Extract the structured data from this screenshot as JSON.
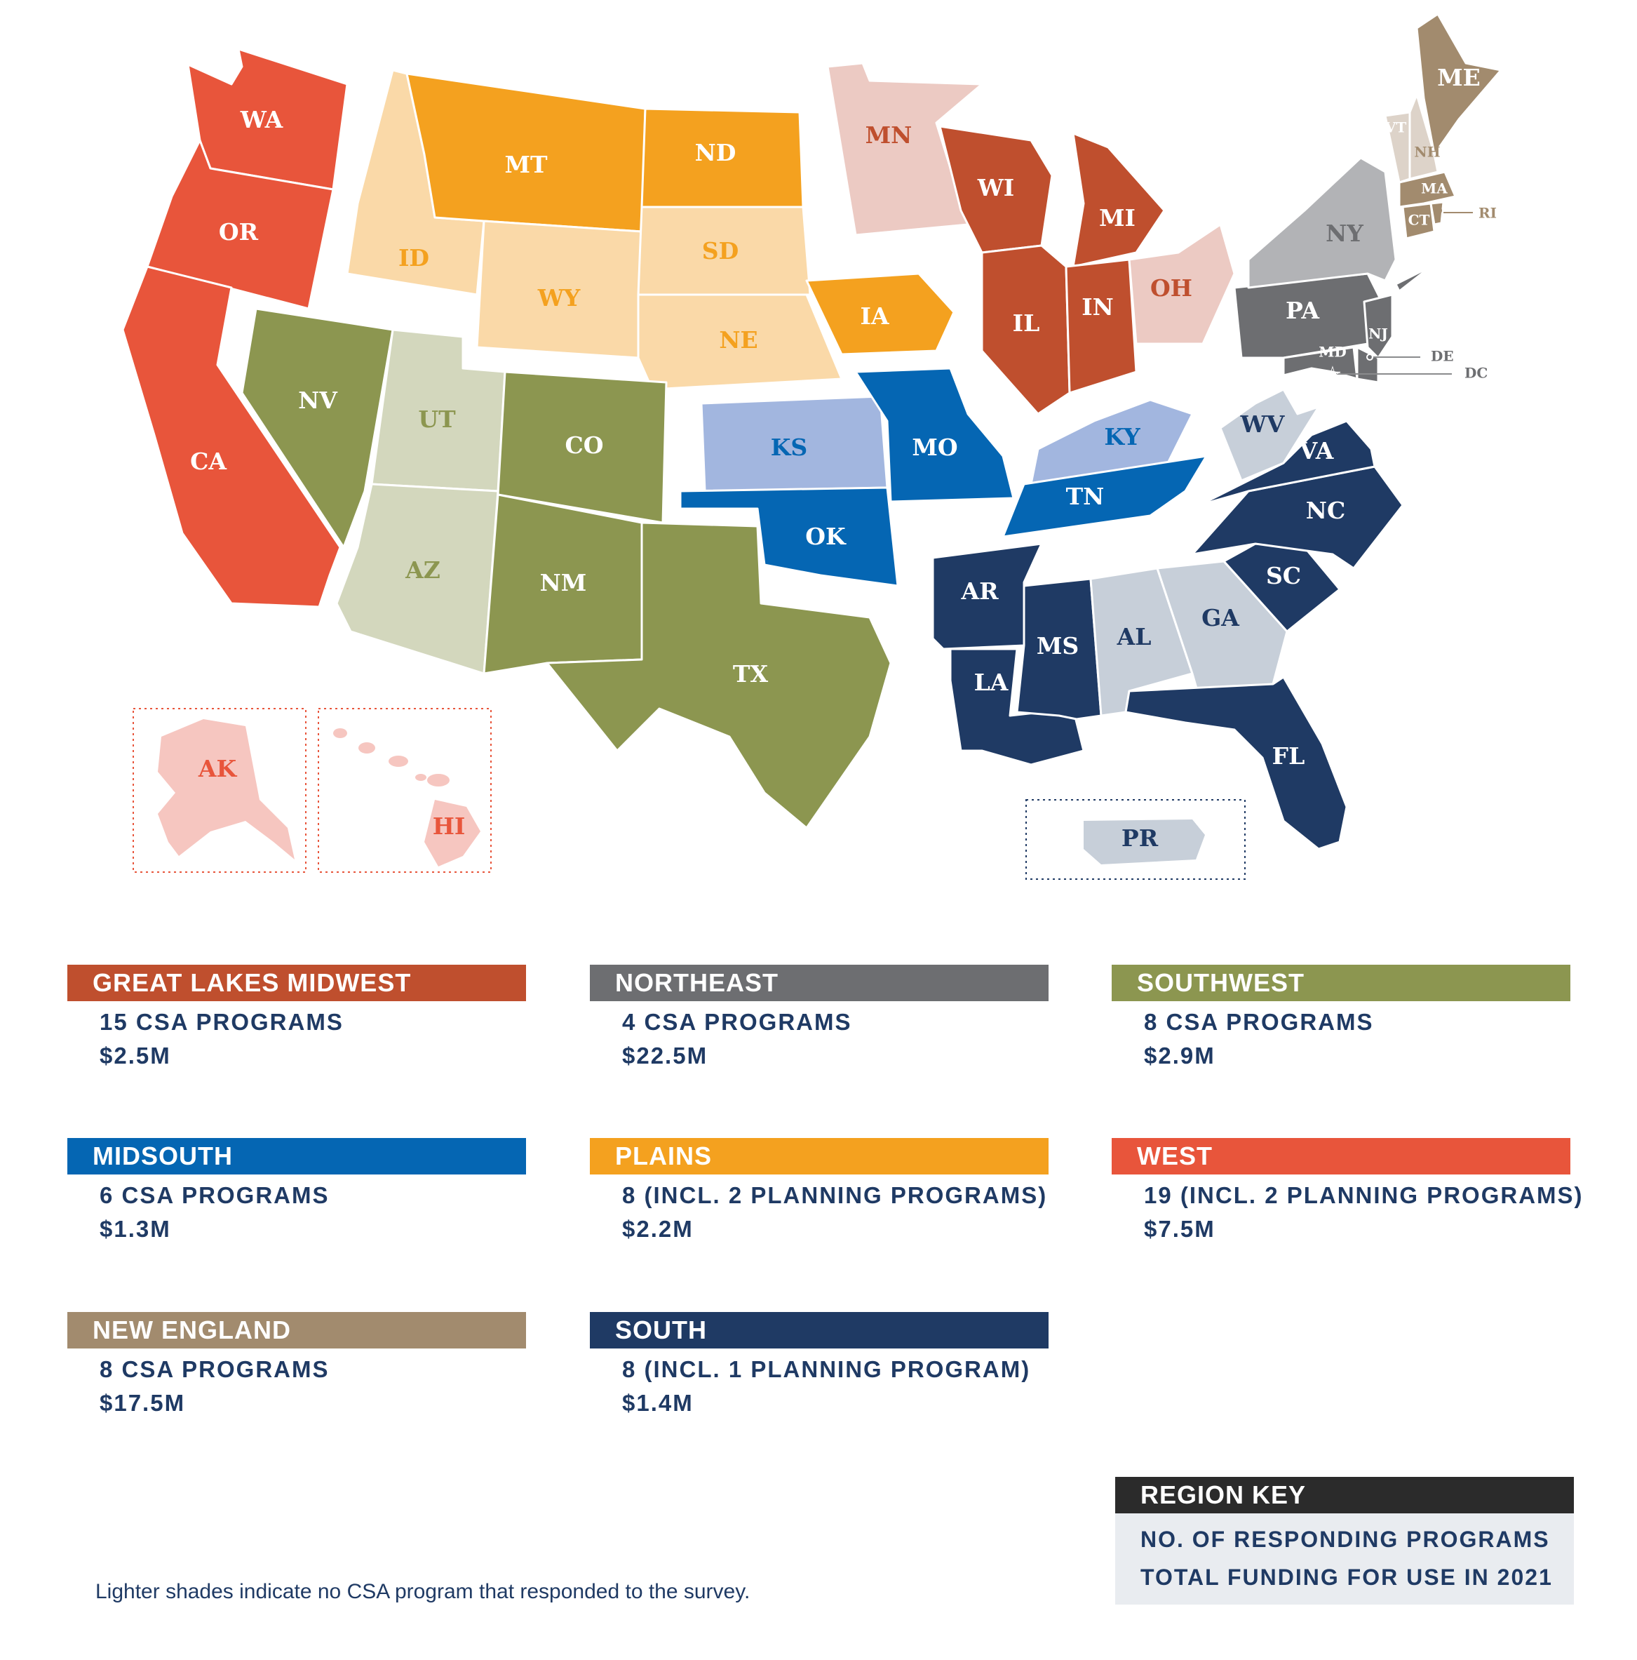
{
  "colors": {
    "great_lakes_midwest": "#bf4f2e",
    "great_lakes_midwest_light": "#eccac3",
    "northeast": "#6d6e71",
    "northeast_light": "#b2b3b6",
    "southwest": "#8c9650",
    "southwest_light": "#d3d7bd",
    "midsouth": "#0566b3",
    "midsouth_light": "#a2b6df",
    "plains": "#f4a11f",
    "plains_light": "#fad9a8",
    "west": "#e8553b",
    "west_light": "#f6c6c0",
    "new_england": "#a28b6e",
    "new_england_light": "#ddd3c9",
    "south": "#1f3a64",
    "south_light": "#c7cfd9",
    "label_dark": "#1f3a64",
    "white": "#ffffff"
  },
  "map": {
    "states": [
      {
        "id": "WA",
        "label": "WA"
      },
      {
        "id": "OR",
        "label": "OR"
      },
      {
        "id": "CA",
        "label": "CA"
      },
      {
        "id": "ID",
        "label": "ID"
      },
      {
        "id": "MT",
        "label": "MT"
      },
      {
        "id": "WY",
        "label": "WY"
      },
      {
        "id": "ND",
        "label": "ND"
      },
      {
        "id": "SD",
        "label": "SD"
      },
      {
        "id": "NE",
        "label": "NE"
      },
      {
        "id": "MN",
        "label": "MN"
      },
      {
        "id": "IA",
        "label": "IA"
      },
      {
        "id": "WI",
        "label": "WI"
      },
      {
        "id": "MI",
        "label": "MI"
      },
      {
        "id": "IL",
        "label": "IL"
      },
      {
        "id": "IN",
        "label": "IN"
      },
      {
        "id": "OH",
        "label": "OH"
      },
      {
        "id": "NV",
        "label": "NV"
      },
      {
        "id": "UT",
        "label": "UT"
      },
      {
        "id": "CO",
        "label": "CO"
      },
      {
        "id": "AZ",
        "label": "AZ"
      },
      {
        "id": "NM",
        "label": "NM"
      },
      {
        "id": "TX",
        "label": "TX"
      },
      {
        "id": "KS",
        "label": "KS"
      },
      {
        "id": "OK",
        "label": "OK"
      },
      {
        "id": "MO",
        "label": "MO"
      },
      {
        "id": "KY",
        "label": "KY"
      },
      {
        "id": "TN",
        "label": "TN"
      },
      {
        "id": "AR",
        "label": "AR"
      },
      {
        "id": "LA",
        "label": "LA"
      },
      {
        "id": "MS",
        "label": "MS"
      },
      {
        "id": "AL",
        "label": "AL"
      },
      {
        "id": "GA",
        "label": "GA"
      },
      {
        "id": "FL",
        "label": "FL"
      },
      {
        "id": "SC",
        "label": "SC"
      },
      {
        "id": "NC",
        "label": "NC"
      },
      {
        "id": "VA",
        "label": "VA"
      },
      {
        "id": "WV",
        "label": "WV"
      },
      {
        "id": "PA",
        "label": "PA"
      },
      {
        "id": "NY",
        "label": "NY"
      },
      {
        "id": "NJ",
        "label": "NJ"
      },
      {
        "id": "MD",
        "label": "MD"
      },
      {
        "id": "DE",
        "label": "DE"
      },
      {
        "id": "DC",
        "label": "DC"
      },
      {
        "id": "ME",
        "label": "ME"
      },
      {
        "id": "VT",
        "label": "VT"
      },
      {
        "id": "NH",
        "label": "NH"
      },
      {
        "id": "MA",
        "label": "MA"
      },
      {
        "id": "CT",
        "label": "CT"
      },
      {
        "id": "RI",
        "label": "RI"
      },
      {
        "id": "AK",
        "label": "AK"
      },
      {
        "id": "HI",
        "label": "HI"
      },
      {
        "id": "PR",
        "label": "PR"
      }
    ]
  },
  "regions": [
    {
      "id": "great_lakes_midwest",
      "title": "GREAT LAKES MIDWEST",
      "programs": "15 CSA PROGRAMS",
      "funding": "$2.5M"
    },
    {
      "id": "northeast",
      "title": "NORTHEAST",
      "programs": "4 CSA PROGRAMS",
      "funding": "$22.5M"
    },
    {
      "id": "southwest",
      "title": "SOUTHWEST",
      "programs": "8 CSA PROGRAMS",
      "funding": "$2.9M"
    },
    {
      "id": "midsouth",
      "title": "MIDSOUTH",
      "programs": "6 CSA PROGRAMS",
      "funding": "$1.3M"
    },
    {
      "id": "plains",
      "title": "PLAINS",
      "programs": "8 (INCL. 2 PLANNING PROGRAMS)",
      "funding": "$2.2M"
    },
    {
      "id": "west",
      "title": "WEST",
      "programs": "19 (INCL. 2 PLANNING PROGRAMS)",
      "funding": "$7.5M"
    },
    {
      "id": "new_england",
      "title": "NEW ENGLAND",
      "programs": "8 CSA PROGRAMS",
      "funding": "$17.5M"
    },
    {
      "id": "south",
      "title": "SOUTH",
      "programs": "8 (INCL. 1 PLANNING PROGRAM)",
      "funding": "$1.4M"
    }
  ],
  "key": {
    "title": "REGION KEY",
    "line1": "NO. OF RESPONDING PROGRAMS",
    "line2": "TOTAL FUNDING FOR USE IN 2021"
  },
  "footnote": "Lighter shades indicate no CSA program that responded to the survey."
}
